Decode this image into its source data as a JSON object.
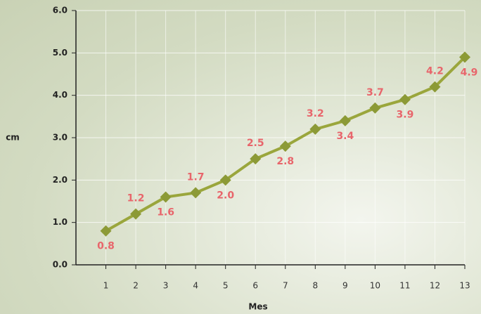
{
  "chart_data": {
    "type": "line",
    "x_label": "Mes",
    "y_label": "cm",
    "categories": [
      "1",
      "2",
      "3",
      "4",
      "5",
      "6",
      "7",
      "8",
      "9",
      "10",
      "11",
      "12",
      "13"
    ],
    "values": [
      0.8,
      1.2,
      1.6,
      1.7,
      2.0,
      2.5,
      2.8,
      3.2,
      3.4,
      3.7,
      3.9,
      4.2,
      4.9
    ],
    "value_labels": [
      "0.8",
      "1.2",
      "1.6",
      "1.7",
      "2.0",
      "2.5",
      "2.8",
      "3.2",
      "3.4",
      "3.7",
      "3.9",
      "4.2",
      "4.9"
    ],
    "color": "#9aa63c",
    "ylim": [
      0,
      6
    ],
    "yticks": [
      {
        "value": 0,
        "label": "0.0"
      },
      {
        "value": 1,
        "label": "1.0"
      },
      {
        "value": 2,
        "label": "2.0"
      },
      {
        "value": 3,
        "label": "3.0"
      },
      {
        "value": 4,
        "label": "4.0"
      },
      {
        "value": 5,
        "label": "5.0"
      },
      {
        "value": 6,
        "label": "6.0"
      }
    ],
    "grid": true
  }
}
